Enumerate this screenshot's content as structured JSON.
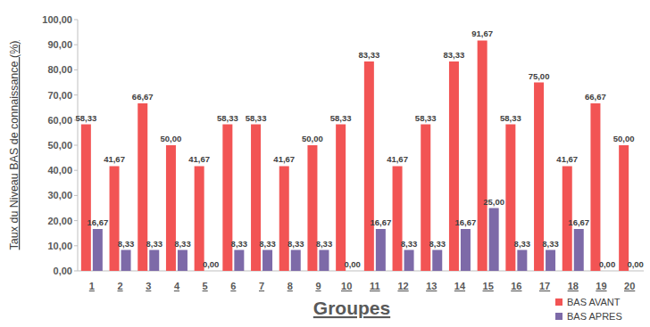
{
  "chart_data": {
    "type": "bar",
    "y_label": "Taux du Niveau BAS de connaissance (%)",
    "x_label": "Groupes",
    "categories": [
      "1",
      "2",
      "3",
      "4",
      "5",
      "6",
      "7",
      "8",
      "9",
      "10",
      "11",
      "12",
      "13",
      "14",
      "15",
      "16",
      "17",
      "18",
      "19",
      "20"
    ],
    "series": [
      {
        "name": "BAS AVANT",
        "color": "#f25454",
        "values": [
          58.33,
          41.67,
          66.67,
          50,
          41.67,
          58.33,
          58.33,
          41.67,
          50,
          58.33,
          83.33,
          41.67,
          58.33,
          83.33,
          91.67,
          58.33,
          75,
          41.67,
          66.67,
          50
        ],
        "value_labels": [
          "58,33",
          "41,67",
          "66,67",
          "50,00",
          "41,67",
          "58,33",
          "58,33",
          "41,67",
          "50,00",
          "58,33",
          "83,33",
          "41,67",
          "58,33",
          "83,33",
          "91,67",
          "58,33",
          "75,00",
          "41,67",
          "66,67",
          "50,00"
        ]
      },
      {
        "name": "BAS APRES",
        "color": "#7d6aa8",
        "values": [
          16.67,
          8.33,
          8.33,
          8.33,
          0,
          8.33,
          8.33,
          8.33,
          8.33,
          0,
          16.67,
          8.33,
          8.33,
          16.67,
          25,
          8.33,
          8.33,
          16.67,
          0,
          0
        ],
        "value_labels": [
          "16,67",
          "8,33",
          "8,33",
          "8,33",
          "0,00",
          "8,33",
          "8,33",
          "8,33",
          "8,33",
          "0,00",
          "16,67",
          "8,33",
          "8,33",
          "16,67",
          "25,00",
          "8,33",
          "8,33",
          "16,67",
          "0,00",
          "0,00"
        ]
      }
    ],
    "ylim": [
      0,
      100
    ],
    "yticks": [
      {
        "value": 0,
        "label": "0,00"
      },
      {
        "value": 10,
        "label": "10,00"
      },
      {
        "value": 20,
        "label": "20,00"
      },
      {
        "value": 30,
        "label": "30,00"
      },
      {
        "value": 40,
        "label": "40,00"
      },
      {
        "value": 50,
        "label": "50,00"
      },
      {
        "value": 60,
        "label": "60,00"
      },
      {
        "value": 70,
        "label": "70,00"
      },
      {
        "value": 80,
        "label": "80,00"
      },
      {
        "value": 90,
        "label": "90,00"
      },
      {
        "value": 100,
        "label": "100,00"
      }
    ],
    "data_labels": true,
    "legend": "bottom-right",
    "grid": false
  }
}
